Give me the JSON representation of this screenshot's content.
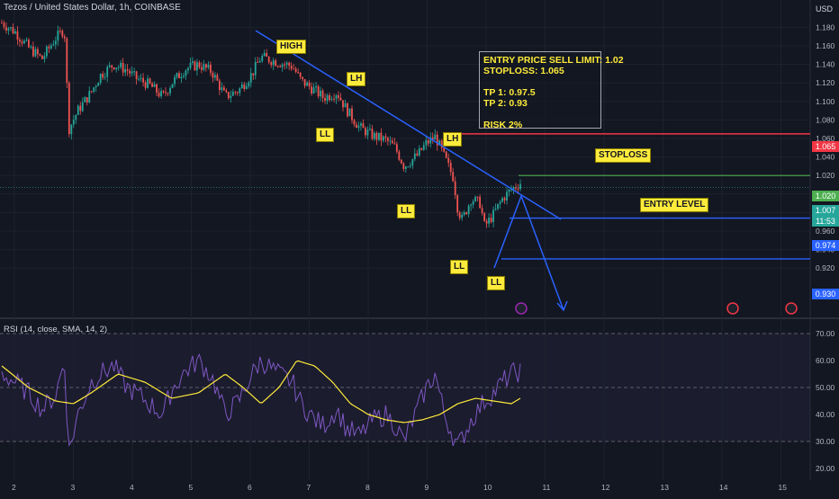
{
  "header": {
    "symbol_line": "Tezos / United States Dollar, 1h, COINBASE",
    "currency": "USD"
  },
  "price_axis": {
    "ticks": [
      "1.180",
      "1.160",
      "1.140",
      "1.120",
      "1.100",
      "1.080",
      "1.060",
      "1.040",
      "1.020",
      "1.000",
      "0.980",
      "0.960",
      "0.940",
      "0.920"
    ]
  },
  "rsi_axis": {
    "ticks": [
      "70.00",
      "60.00",
      "50.00",
      "40.00",
      "30.00",
      "20.00"
    ]
  },
  "time_axis": {
    "ticks": [
      "2",
      "3",
      "4",
      "5",
      "6",
      "7",
      "8",
      "9",
      "10",
      "11",
      "12",
      "13",
      "14",
      "15"
    ]
  },
  "note": {
    "line1": "ENTRY PRICE SELL LIMIT: 1.02",
    "line2": "STOPLOSS: 1.065",
    "line3": "TP 1: 0.97.5",
    "line4": "TP 2: 0.93",
    "line5": "RISK 2%"
  },
  "labels": {
    "high": "HIGH",
    "lh1": "LH",
    "lh2": "LH",
    "ll1": "LL",
    "ll2": "LL",
    "ll3": "LL",
    "ll4": "LL",
    "stoploss": "STOPLOSS",
    "entry": "ENTRY LEVEL"
  },
  "price_tags": {
    "stoploss": "1.065",
    "entry": "1.020",
    "last": "1.007",
    "countdown": "11:53",
    "tp1": "0.974",
    "tp2": "0.930"
  },
  "rsi": {
    "title": "RSI (14, close, SMA, 14, 2)"
  },
  "colors": {
    "bg": "#131722",
    "up": "#26a69a",
    "down": "#ef5350",
    "trend": "#2962ff",
    "stoploss": "#f23645",
    "entry": "#4caf50",
    "tp": "#2962ff",
    "rsi": "#7e57c2",
    "rsi_ma": "#ffeb3b",
    "label_bg": "#ffeb3b"
  },
  "chart_data": {
    "type": "candlestick",
    "price_range": [
      0.915,
      1.19
    ],
    "rsi_range": [
      18,
      75
    ],
    "levels": {
      "stoploss": 1.065,
      "entry": 1.02,
      "tp1": 0.974,
      "tp2": 0.93,
      "last": 1.007
    },
    "rsi_bands": [
      70,
      50,
      30
    ],
    "price_path": [
      [
        1.185,
        0
      ],
      [
        1.175,
        3
      ],
      [
        1.158,
        6
      ],
      [
        1.146,
        9
      ],
      [
        1.168,
        12
      ],
      [
        1.178,
        14
      ],
      [
        1.07,
        15
      ],
      [
        1.09,
        17
      ],
      [
        1.11,
        20
      ],
      [
        1.128,
        22
      ],
      [
        1.14,
        25
      ],
      [
        1.134,
        28
      ],
      [
        1.125,
        30
      ],
      [
        1.118,
        33
      ],
      [
        1.105,
        36
      ],
      [
        1.12,
        38
      ],
      [
        1.135,
        41
      ],
      [
        1.14,
        44
      ],
      [
        1.132,
        47
      ],
      [
        1.105,
        50
      ],
      [
        1.112,
        53
      ],
      [
        1.13,
        56
      ],
      [
        1.148,
        58
      ],
      [
        1.142,
        62
      ],
      [
        1.138,
        65
      ],
      [
        1.122,
        67
      ],
      [
        1.112,
        70
      ],
      [
        1.104,
        72
      ],
      [
        1.11,
        75
      ],
      [
        1.092,
        77
      ],
      [
        1.072,
        80
      ],
      [
        1.063,
        83
      ],
      [
        1.058,
        86
      ],
      [
        1.05,
        88
      ],
      [
        1.03,
        90
      ],
      [
        1.042,
        93
      ],
      [
        1.055,
        95
      ],
      [
        1.062,
        97
      ],
      [
        1.04,
        99
      ],
      [
        1.018,
        101
      ],
      [
        0.984,
        102
      ],
      [
        0.972,
        103
      ],
      [
        0.995,
        105
      ],
      [
        0.99,
        107
      ],
      [
        0.965,
        108
      ],
      [
        0.978,
        110
      ],
      [
        0.995,
        112
      ],
      [
        1.005,
        114
      ],
      [
        1.012,
        116
      ]
    ],
    "rsi_path": [
      [
        55,
        0
      ],
      [
        52,
        3
      ],
      [
        48,
        6
      ],
      [
        42,
        9
      ],
      [
        47,
        12
      ],
      [
        60,
        14
      ],
      [
        26,
        15
      ],
      [
        40,
        17
      ],
      [
        52,
        20
      ],
      [
        55,
        22
      ],
      [
        58,
        25
      ],
      [
        50,
        28
      ],
      [
        48,
        30
      ],
      [
        44,
        33
      ],
      [
        40,
        36
      ],
      [
        49,
        38
      ],
      [
        56,
        41
      ],
      [
        60,
        44
      ],
      [
        54,
        47
      ],
      [
        40,
        50
      ],
      [
        45,
        53
      ],
      [
        55,
        56
      ],
      [
        60,
        58
      ],
      [
        55,
        62
      ],
      [
        52,
        65
      ],
      [
        44,
        67
      ],
      [
        38,
        70
      ],
      [
        36,
        72
      ],
      [
        42,
        75
      ],
      [
        35,
        77
      ],
      [
        32,
        80
      ],
      [
        38,
        83
      ],
      [
        40,
        86
      ],
      [
        36,
        88
      ],
      [
        30,
        90
      ],
      [
        42,
        93
      ],
      [
        50,
        95
      ],
      [
        55,
        97
      ],
      [
        40,
        99
      ],
      [
        32,
        101
      ],
      [
        28,
        102
      ],
      [
        38,
        105
      ],
      [
        45,
        108
      ],
      [
        48,
        110
      ],
      [
        52,
        112
      ],
      [
        55,
        114
      ],
      [
        56,
        116
      ]
    ],
    "rsi_ma_path": [
      [
        58,
        0
      ],
      [
        50,
        6
      ],
      [
        45,
        12
      ],
      [
        44,
        16
      ],
      [
        48,
        20
      ],
      [
        55,
        26
      ],
      [
        52,
        32
      ],
      [
        46,
        38
      ],
      [
        48,
        44
      ],
      [
        55,
        50
      ],
      [
        50,
        54
      ],
      [
        44,
        58
      ],
      [
        50,
        62
      ],
      [
        60,
        66
      ],
      [
        58,
        70
      ],
      [
        52,
        74
      ],
      [
        44,
        78
      ],
      [
        40,
        82
      ],
      [
        38,
        86
      ],
      [
        37,
        90
      ],
      [
        38,
        94
      ],
      [
        40,
        98
      ],
      [
        44,
        102
      ],
      [
        46,
        106
      ],
      [
        45,
        110
      ],
      [
        44,
        114
      ],
      [
        46,
        116
      ]
    ]
  }
}
